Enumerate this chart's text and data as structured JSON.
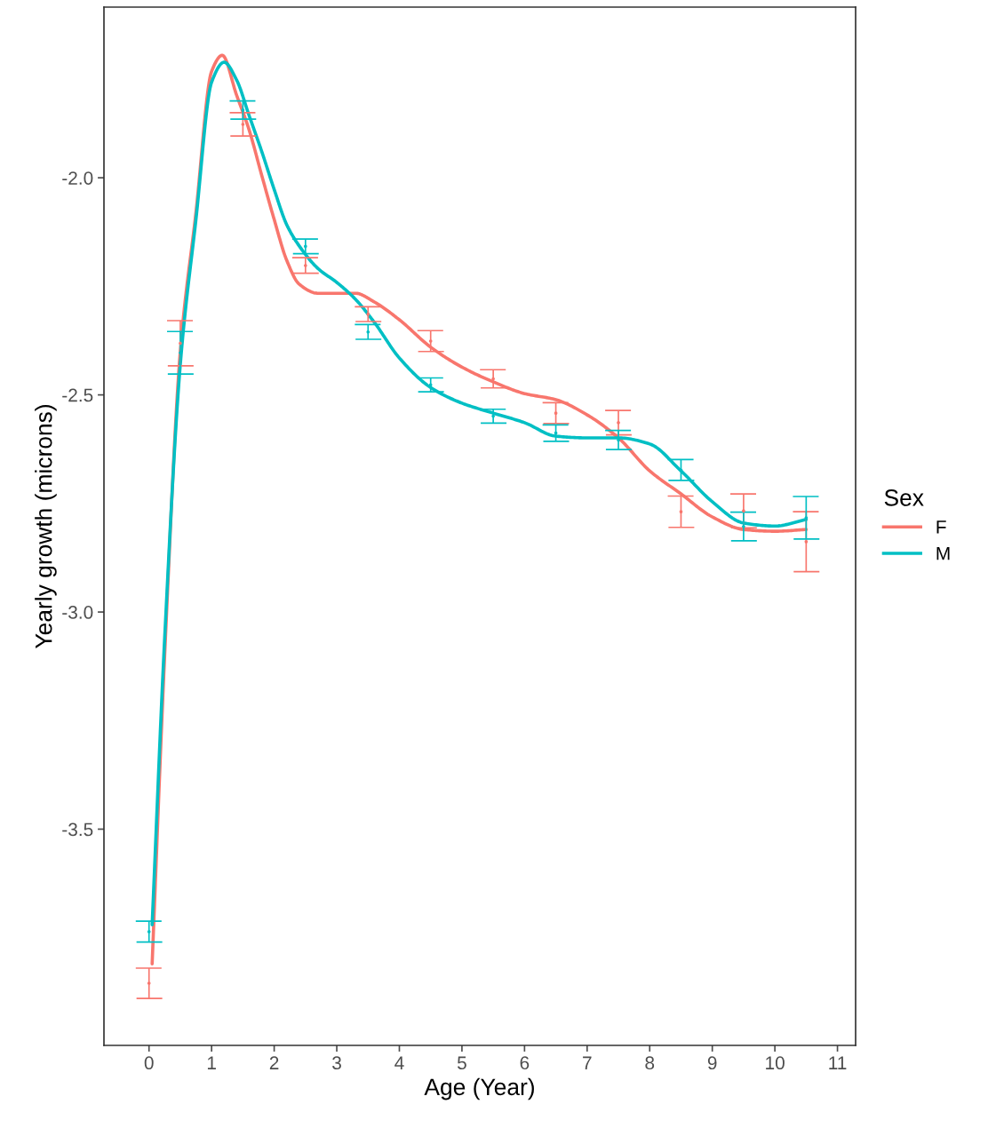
{
  "chart_data": {
    "type": "line",
    "xlabel": "Age (Year)",
    "ylabel": "Yearly growth (microns)",
    "legend_title": "Sex",
    "legend": "right",
    "grid": false,
    "xlim": [
      -0.72,
      11.29
    ],
    "ylim": [
      -3.998,
      -1.607
    ],
    "xticks": [
      0,
      1,
      2,
      3,
      4,
      5,
      6,
      7,
      8,
      9,
      10,
      11
    ],
    "yticks": [
      {
        "value": -3.5,
        "label": "-3.5"
      },
      {
        "value": -3.0,
        "label": "-3.0"
      },
      {
        "value": -2.5,
        "label": "-2.5"
      },
      {
        "value": -2.0,
        "label": "-2.0"
      }
    ],
    "series": [
      {
        "name": "F",
        "color": "#f8766d",
        "x": [
          0.05,
          0.25,
          0.5,
          0.75,
          1.0,
          1.17,
          1.4,
          1.6,
          1.8,
          2.0,
          2.2,
          2.4,
          2.7,
          3.0,
          3.3,
          3.6,
          4.0,
          4.5,
          5.0,
          5.5,
          6.0,
          6.5,
          7.0,
          7.5,
          8.0,
          8.5,
          9.0,
          9.5,
          10.0,
          10.5
        ],
        "values": [
          -3.81,
          -3.1,
          -2.4,
          -2.08,
          -1.755,
          -1.718,
          -1.81,
          -1.89,
          -1.994,
          -2.096,
          -2.19,
          -2.245,
          -2.266,
          -2.266,
          -2.266,
          -2.286,
          -2.327,
          -2.39,
          -2.436,
          -2.47,
          -2.497,
          -2.511,
          -2.546,
          -2.599,
          -2.675,
          -2.728,
          -2.781,
          -2.81,
          -2.814,
          -2.81
        ]
      },
      {
        "name": "M",
        "color": "#00bfc4",
        "x": [
          0.05,
          0.25,
          0.5,
          0.75,
          1.0,
          1.2,
          1.4,
          1.6,
          1.8,
          2.0,
          2.2,
          2.4,
          2.7,
          3.0,
          3.3,
          3.6,
          4.0,
          4.5,
          5.0,
          5.5,
          6.0,
          6.5,
          7.0,
          7.5,
          8.0,
          8.5,
          9.0,
          9.5,
          10.0,
          10.5
        ],
        "values": [
          -3.72,
          -3.06,
          -2.43,
          -2.096,
          -1.78,
          -1.734,
          -1.775,
          -1.857,
          -1.939,
          -2.027,
          -2.108,
          -2.157,
          -2.209,
          -2.241,
          -2.28,
          -2.333,
          -2.415,
          -2.483,
          -2.519,
          -2.542,
          -2.564,
          -2.595,
          -2.599,
          -2.599,
          -2.613,
          -2.675,
          -2.746,
          -2.795,
          -2.802,
          -2.787
        ]
      },
      {
        "type": "scatter",
        "marker": "none",
        "color": "#f8766d",
        "x": [
          0,
          0.5,
          1.5,
          2.5,
          3.5,
          4.5,
          5.5,
          6.5,
          7.5,
          8.5,
          9.5,
          10.5
        ],
        "values": [
          -3.855,
          -2.381,
          -1.877,
          -2.202,
          -2.314,
          -2.376,
          -2.463,
          -2.542,
          -2.564,
          -2.769,
          -2.767,
          -2.838
        ],
        "errors": [
          0.035,
          0.052,
          0.027,
          0.018,
          0.017,
          0.024,
          0.021,
          0.024,
          0.028,
          0.036,
          0.039,
          0.069
        ]
      },
      {
        "type": "scatter",
        "marker": "none",
        "color": "#00bfc4",
        "x": [
          0,
          0.5,
          1.5,
          2.5,
          3.5,
          4.5,
          5.5,
          6.5,
          7.5,
          8.5,
          9.5,
          10.5
        ],
        "values": [
          -3.736,
          -2.403,
          -1.844,
          -2.158,
          -2.355,
          -2.477,
          -2.549,
          -2.588,
          -2.604,
          -2.673,
          -2.803,
          -2.783
        ],
        "errors": [
          0.024,
          0.049,
          0.021,
          0.017,
          0.017,
          0.016,
          0.016,
          0.019,
          0.022,
          0.024,
          0.033,
          0.049
        ]
      }
    ]
  }
}
